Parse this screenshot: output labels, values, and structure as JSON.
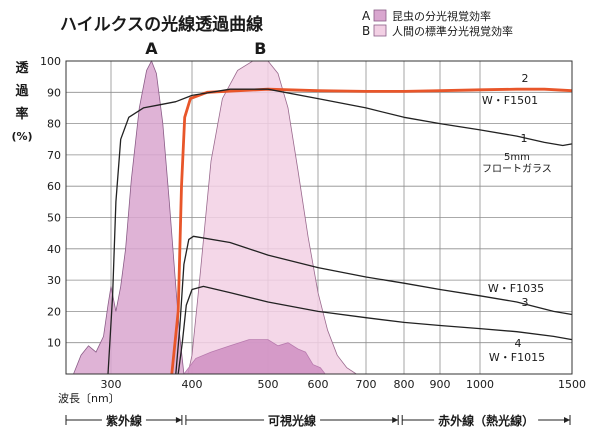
{
  "chart_data": {
    "type": "line",
    "title": "ハイルクスの光線透過曲線",
    "ylabel_chars": [
      "透",
      "過",
      "率",
      "(%)"
    ],
    "xlabel": "波長〔nm〕",
    "ylim": [
      0,
      100
    ],
    "y_ticks": [
      10,
      20,
      30,
      40,
      50,
      60,
      70,
      80,
      90,
      100
    ],
    "x_ticks": [
      {
        "label": "300",
        "nm": 300
      },
      {
        "label": "400",
        "nm": 400
      },
      {
        "label": "500",
        "nm": 500
      },
      {
        "label": "600",
        "nm": 600
      },
      {
        "label": "700",
        "nm": 700
      },
      {
        "label": "800",
        "nm": 800
      },
      {
        "label": "900",
        "nm": 900
      },
      {
        "label": "1000",
        "nm": 1000
      },
      {
        "label": "1500",
        "nm": 1500
      }
    ],
    "legend": [
      {
        "key": "A",
        "text": "昆虫の分光視覚効率",
        "color": "#d9a6cf"
      },
      {
        "key": "B",
        "text": "人間の標準分光視覚効率",
        "color": "#f2d0e4"
      }
    ],
    "band_letters": [
      {
        "text": "A",
        "nm": 350
      },
      {
        "text": "B",
        "nm": 490
      }
    ],
    "regions": [
      {
        "label": "紫外線",
        "from": 240,
        "to": 390
      },
      {
        "label": "可視光線",
        "from": 390,
        "to": 790
      },
      {
        "label": "赤外線（熱光線）",
        "from": 790,
        "to": 1500
      }
    ],
    "series": [
      {
        "name": "W・F1501",
        "number": "2",
        "color": "#e8562a",
        "width": 2.8,
        "points": [
          [
            375,
            0
          ],
          [
            383,
            20
          ],
          [
            387,
            60
          ],
          [
            391,
            82
          ],
          [
            398,
            88
          ],
          [
            420,
            90
          ],
          [
            500,
            91
          ],
          [
            600,
            90.5
          ],
          [
            700,
            90.3
          ],
          [
            800,
            90.3
          ],
          [
            900,
            90.5
          ],
          [
            1000,
            90.8
          ],
          [
            1200,
            91
          ],
          [
            1350,
            91
          ],
          [
            1500,
            90.5
          ]
        ]
      },
      {
        "name": "5mm フロートガラス",
        "number": "1",
        "color": "#222222",
        "width": 1.3,
        "points": [
          [
            296,
            0
          ],
          [
            302,
            25
          ],
          [
            306,
            55
          ],
          [
            312,
            75
          ],
          [
            322,
            82
          ],
          [
            340,
            85
          ],
          [
            360,
            86
          ],
          [
            380,
            87
          ],
          [
            400,
            89
          ],
          [
            450,
            91
          ],
          [
            500,
            91
          ],
          [
            600,
            88
          ],
          [
            700,
            85
          ],
          [
            800,
            82
          ],
          [
            900,
            80
          ],
          [
            1000,
            78
          ],
          [
            1200,
            76
          ],
          [
            1350,
            74
          ],
          [
            1450,
            73
          ],
          [
            1500,
            73.5
          ]
        ]
      },
      {
        "name": "W・F1035",
        "number": "3",
        "color": "#222222",
        "width": 1.3,
        "points": [
          [
            380,
            0
          ],
          [
            385,
            15
          ],
          [
            390,
            35
          ],
          [
            396,
            43
          ],
          [
            402,
            44
          ],
          [
            450,
            42
          ],
          [
            500,
            38
          ],
          [
            600,
            34
          ],
          [
            700,
            31
          ],
          [
            800,
            29
          ],
          [
            900,
            27
          ],
          [
            1000,
            25
          ],
          [
            1200,
            23
          ],
          [
            1400,
            20
          ],
          [
            1500,
            19
          ]
        ]
      },
      {
        "name": "W・F1015",
        "number": "4",
        "color": "#222222",
        "width": 1.3,
        "points": [
          [
            383,
            0
          ],
          [
            388,
            10
          ],
          [
            393,
            22
          ],
          [
            400,
            27
          ],
          [
            415,
            28
          ],
          [
            450,
            26
          ],
          [
            500,
            23
          ],
          [
            600,
            20
          ],
          [
            700,
            18
          ],
          [
            800,
            16.5
          ],
          [
            900,
            15.5
          ],
          [
            1000,
            14.5
          ],
          [
            1200,
            13.5
          ],
          [
            1400,
            12
          ],
          [
            1500,
            11
          ]
        ]
      }
    ],
    "bands": [
      {
        "key": "A",
        "color": "#d9a6cf",
        "stroke": "#8a5c87",
        "points": [
          [
            250,
            0
          ],
          [
            260,
            6
          ],
          [
            270,
            9
          ],
          [
            280,
            7
          ],
          [
            290,
            12
          ],
          [
            296,
            22
          ],
          [
            300,
            28
          ],
          [
            306,
            20
          ],
          [
            312,
            28
          ],
          [
            318,
            40
          ],
          [
            325,
            62
          ],
          [
            335,
            85
          ],
          [
            344,
            97
          ],
          [
            350,
            100
          ],
          [
            356,
            96
          ],
          [
            364,
            80
          ],
          [
            372,
            55
          ],
          [
            380,
            28
          ],
          [
            385,
            12
          ],
          [
            390,
            0
          ]
        ]
      },
      {
        "key": "B",
        "color": "#f2d0e4",
        "stroke": "#9a6a8e",
        "points": [
          [
            395,
            0
          ],
          [
            400,
            6
          ],
          [
            410,
            30
          ],
          [
            425,
            68
          ],
          [
            440,
            88
          ],
          [
            460,
            97
          ],
          [
            480,
            100
          ],
          [
            500,
            100
          ],
          [
            520,
            96
          ],
          [
            540,
            85
          ],
          [
            560,
            65
          ],
          [
            580,
            44
          ],
          [
            600,
            26
          ],
          [
            620,
            14
          ],
          [
            640,
            6
          ],
          [
            660,
            2
          ],
          [
            680,
            0
          ]
        ]
      },
      {
        "key": "",
        "color": "#cf8fc2",
        "stroke": "#b87aae",
        "points": [
          [
            390,
            0
          ],
          [
            405,
            5
          ],
          [
            425,
            7
          ],
          [
            450,
            9
          ],
          [
            475,
            11
          ],
          [
            500,
            11
          ],
          [
            520,
            9
          ],
          [
            540,
            10
          ],
          [
            560,
            8
          ],
          [
            575,
            7
          ],
          [
            590,
            3
          ],
          [
            605,
            2
          ],
          [
            615,
            0
          ]
        ]
      }
    ]
  }
}
